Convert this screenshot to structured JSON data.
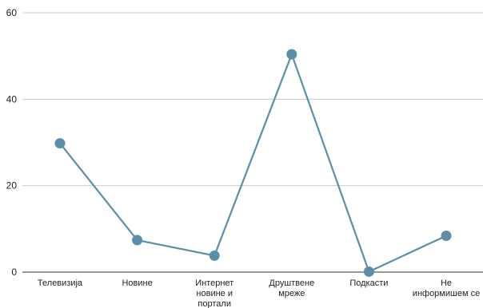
{
  "chart_data": {
    "type": "line",
    "title": "",
    "xlabel": "",
    "ylabel": "",
    "ylim": [
      0,
      60
    ],
    "yticks": [
      0,
      20,
      40,
      60
    ],
    "grid": true,
    "categories": [
      [
        "Телевизија"
      ],
      [
        "Новине"
      ],
      [
        "Интернет",
        "новине и",
        "портали"
      ],
      [
        "Друштвене",
        "мреже"
      ],
      [
        "Подкасти"
      ],
      [
        "Не",
        "информишем се"
      ]
    ],
    "series": [
      {
        "values": [
          29.8,
          7.4,
          3.8,
          50.4,
          0.1,
          8.4
        ]
      }
    ],
    "colors": {
      "line": "#5b8fa8",
      "marker": "#5b8fa8",
      "grid": "#cccccc",
      "axis": "#333333"
    }
  }
}
